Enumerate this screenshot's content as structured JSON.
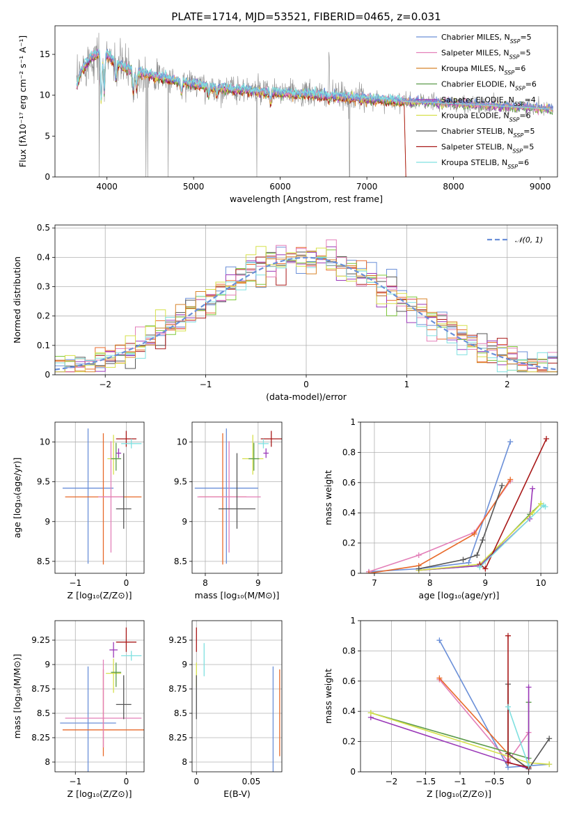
{
  "figure_title": "PLATE=1714, MJD=53521, FIBERID=0465, z=0.031",
  "colors": {
    "c1": "#6a8fd8",
    "c2": "#e37fb8",
    "c3": "#d8842a",
    "c4": "#5b9a4a",
    "c5": "#9a38b8",
    "c6": "#d6e04a",
    "c7": "#555555",
    "c8": "#a81818",
    "c9": "#7fe0e0",
    "c10": "#1f77b4",
    "c11": "#e86a2a",
    "c12": "#7fc83a"
  },
  "chart_data": [
    {
      "id": "spectrum",
      "type": "line",
      "title": "PLATE=1714, MJD=53521, FIBERID=0465, z=0.031",
      "xlabel": "wavelength [Angstrom, rest frame]",
      "ylabel": "Flux [fλ10⁻¹⁷ erg cm⁻² s⁻¹ A⁻¹]",
      "xlim": [
        3400,
        9200
      ],
      "ylim": [
        0,
        18.5
      ],
      "xticks": [
        4000,
        5000,
        6000,
        7000,
        8000,
        9000
      ],
      "yticks": [
        0,
        5,
        10,
        15
      ],
      "grid": false,
      "legend_position": "top-right",
      "legend": [
        {
          "label": "Chabrier MILES, N",
          "sub": "SSP",
          "suffix": "=5",
          "color": "c1"
        },
        {
          "label": "Salpeter MILES, N",
          "sub": "SSP",
          "suffix": "=5",
          "color": "c2"
        },
        {
          "label": "Kroupa MILES, N",
          "sub": "SSP",
          "suffix": "=6",
          "color": "c3"
        },
        {
          "label": "Chabrier ELODIE, N",
          "sub": "SSP",
          "suffix": "=6",
          "color": "c4"
        },
        {
          "label": "Salpeter ELODIE, N",
          "sub": "SSP",
          "suffix": "=4",
          "color": "c5"
        },
        {
          "label": "Kroupa ELODIE, N",
          "sub": "SSP",
          "suffix": "=6",
          "color": "c6"
        },
        {
          "label": "Chabrier STELIB, N",
          "sub": "SSP",
          "suffix": "=5",
          "color": "c7"
        },
        {
          "label": "Salpeter STELIB, N",
          "sub": "SSP",
          "suffix": "=5",
          "color": "c8"
        },
        {
          "label": "Kroupa STELIB, N",
          "sub": "SSP",
          "suffix": "=6",
          "color": "c9"
        }
      ],
      "continuum": [
        [
          3650,
          11
        ],
        [
          3700,
          13
        ],
        [
          3800,
          14.5
        ],
        [
          3950,
          15.5
        ],
        [
          4100,
          14
        ],
        [
          4300,
          13
        ],
        [
          4500,
          12.5
        ],
        [
          4800,
          11.8
        ],
        [
          5200,
          11
        ],
        [
          5500,
          10.7
        ],
        [
          6000,
          10.3
        ],
        [
          6500,
          10
        ],
        [
          7000,
          9.6
        ],
        [
          7500,
          9.2
        ],
        [
          8000,
          9.0
        ],
        [
          8500,
          8.7
        ],
        [
          9000,
          8.4
        ],
        [
          9150,
          8.3
        ]
      ],
      "model_cutoff": 7430
    },
    {
      "id": "residuals",
      "type": "line",
      "xlabel": "(data-model)/error",
      "ylabel": "Normed distribution",
      "xlim": [
        -2.5,
        2.5
      ],
      "ylim": [
        0,
        0.51
      ],
      "xticks": [
        -2,
        -1,
        0,
        1,
        2
      ],
      "yticks": [
        0,
        0.1,
        0.2,
        0.3,
        0.4,
        0.5
      ],
      "grid": true,
      "legend_position": "top-right",
      "legend": [
        {
          "label": "𝒩(0, 1)",
          "color": "c1"
        }
      ],
      "bin_width": 0.1
    },
    {
      "id": "age_vs_Z",
      "type": "scatter",
      "xlabel": "Z [log₁₀(Z/Z⊙)]",
      "ylabel": "age  [log₁₀(age/yr)]",
      "xlim": [
        -1.4,
        0.35
      ],
      "ylim": [
        8.35,
        10.25
      ],
      "xticks": [
        -1,
        0
      ],
      "yticks": [
        8.5,
        9.0,
        9.5,
        10.0
      ],
      "grid": true,
      "points": [
        {
          "x": -0.75,
          "y": 9.42,
          "xerr": 0.5,
          "yerr": [
            0.95,
            0.75
          ],
          "color": "c1"
        },
        {
          "x": -0.45,
          "y": 9.31,
          "xerr": 0.75,
          "yerr": [
            0.85,
            0.8
          ],
          "color": "c11"
        },
        {
          "x": -0.3,
          "y": 9.31,
          "xerr": 0.25,
          "yerr": [
            0.7,
            0.7
          ],
          "color": "c2"
        },
        {
          "x": -0.25,
          "y": 9.79,
          "xerr": 0.12,
          "yerr": [
            0.2,
            0.3
          ],
          "color": "c6"
        },
        {
          "x": -0.2,
          "y": 9.79,
          "xerr": 0.1,
          "yerr": [
            0.15,
            0.2
          ],
          "color": "c4"
        },
        {
          "x": -0.15,
          "y": 9.86,
          "xerr": 0.05,
          "yerr": [
            0.06,
            0.06
          ],
          "color": "c5"
        },
        {
          "x": -0.05,
          "y": 9.16,
          "xerr": 0.15,
          "yerr": [
            0.25,
            0.7
          ],
          "color": "c7"
        },
        {
          "x": 0.0,
          "y": 10.04,
          "xerr": 0.2,
          "yerr": [
            0.1,
            0.1
          ],
          "color": "c8"
        },
        {
          "x": 0.1,
          "y": 9.98,
          "xerr": 0.2,
          "yerr": [
            0.06,
            0.06
          ],
          "color": "c9"
        }
      ]
    },
    {
      "id": "age_vs_mass",
      "type": "scatter",
      "xlabel": "mass [log₁₀(M/M⊙)]",
      "ylabel": "",
      "xlim": [
        7.75,
        9.45
      ],
      "ylim": [
        8.35,
        10.25
      ],
      "xticks": [
        8,
        9
      ],
      "yticks": [
        8.5,
        9.0,
        9.5,
        10.0
      ],
      "grid": true,
      "points": [
        {
          "x": 8.4,
          "y": 9.42,
          "xerr": 0.6,
          "yerr": [
            0.95,
            0.75
          ],
          "color": "c1"
        },
        {
          "x": 8.33,
          "y": 9.31,
          "xerr": 0.45,
          "yerr": [
            0.85,
            0.8
          ],
          "color": "c11"
        },
        {
          "x": 8.45,
          "y": 9.31,
          "xerr": 0.6,
          "yerr": [
            0.7,
            0.7
          ],
          "color": "c2"
        },
        {
          "x": 8.9,
          "y": 9.79,
          "xerr": 0.2,
          "yerr": [
            0.2,
            0.3
          ],
          "color": "c6"
        },
        {
          "x": 8.92,
          "y": 9.79,
          "xerr": 0.1,
          "yerr": [
            0.15,
            0.2
          ],
          "color": "c4"
        },
        {
          "x": 9.15,
          "y": 9.86,
          "xerr": 0.05,
          "yerr": [
            0.06,
            0.06
          ],
          "color": "c5"
        },
        {
          "x": 8.6,
          "y": 9.16,
          "xerr": 0.35,
          "yerr": [
            0.25,
            0.7
          ],
          "color": "c7"
        },
        {
          "x": 9.25,
          "y": 10.04,
          "xerr": 0.2,
          "yerr": [
            0.1,
            0.1
          ],
          "color": "c8"
        },
        {
          "x": 9.1,
          "y": 9.98,
          "xerr": 0.1,
          "yerr": [
            0.06,
            0.06
          ],
          "color": "c9"
        }
      ]
    },
    {
      "id": "massweight_vs_age",
      "type": "line",
      "xlabel": "age  [log₁₀(age/yr)]",
      "ylabel": "mass weight",
      "xlim": [
        6.75,
        10.3
      ],
      "ylim": [
        0,
        1.0
      ],
      "xticks": [
        7,
        8,
        9,
        10
      ],
      "yticks": [
        0,
        0.2,
        0.4,
        0.6,
        0.8,
        1.0
      ],
      "grid": true,
      "series": [
        {
          "color": "c1",
          "x": [
            6.9,
            7.8,
            8.7,
            9.45
          ],
          "y": [
            0.01,
            0.03,
            0.07,
            0.87
          ]
        },
        {
          "color": "c2",
          "x": [
            6.9,
            7.8,
            8.8,
            9.45
          ],
          "y": [
            0.01,
            0.12,
            0.27,
            0.61
          ]
        },
        {
          "color": "c11",
          "x": [
            6.9,
            7.8,
            8.8,
            9.45
          ],
          "y": [
            0.0,
            0.05,
            0.26,
            0.62
          ]
        },
        {
          "color": "c4",
          "x": [
            7.8,
            8.9,
            9.8,
            10.0
          ],
          "y": [
            0.02,
            0.05,
            0.39,
            0.46
          ]
        },
        {
          "color": "c5",
          "x": [
            7.8,
            8.9,
            9.8,
            9.85
          ],
          "y": [
            0.02,
            0.05,
            0.36,
            0.56
          ]
        },
        {
          "color": "c6",
          "x": [
            7.8,
            8.9,
            9.85,
            10.0
          ],
          "y": [
            0.02,
            0.06,
            0.4,
            0.46
          ]
        },
        {
          "color": "c7",
          "x": [
            7.8,
            8.6,
            8.85,
            8.95,
            9.3
          ],
          "y": [
            0.03,
            0.09,
            0.12,
            0.22,
            0.58
          ]
        },
        {
          "color": "c8",
          "x": [
            8.9,
            9.0,
            10.1
          ],
          "y": [
            0.06,
            0.03,
            0.89
          ]
        },
        {
          "color": "c9",
          "x": [
            8.9,
            10.05,
            10.08
          ],
          "y": [
            0.04,
            0.45,
            0.44
          ]
        }
      ]
    },
    {
      "id": "mass_vs_Z",
      "type": "scatter",
      "xlabel": "Z [log₁₀(Z/Z⊙)]",
      "ylabel": "mass [log₁₀(M/M⊙)]",
      "xlim": [
        -1.4,
        0.35
      ],
      "ylim": [
        7.9,
        9.45
      ],
      "xticks": [
        -1,
        0
      ],
      "yticks": [
        8.0,
        8.25,
        8.5,
        8.75,
        9.0,
        9.25
      ],
      "grid": true,
      "points": [
        {
          "x": -0.75,
          "y": 8.4,
          "xerr": 0.55,
          "yerr": [
            0.55,
            0.58
          ],
          "color": "c1"
        },
        {
          "x": -0.45,
          "y": 8.33,
          "xerr": 0.8,
          "yerr": [
            0.27,
            0.62
          ],
          "color": "c11"
        },
        {
          "x": -0.45,
          "y": 8.45,
          "xerr": 0.75,
          "yerr": [
            0.3,
            0.6
          ],
          "color": "c2"
        },
        {
          "x": -0.25,
          "y": 8.91,
          "xerr": 0.15,
          "yerr": [
            0.2,
            0.15
          ],
          "color": "c6"
        },
        {
          "x": -0.2,
          "y": 8.92,
          "xerr": 0.1,
          "yerr": [
            0.15,
            0.1
          ],
          "color": "c4"
        },
        {
          "x": -0.25,
          "y": 9.15,
          "xerr": 0.08,
          "yerr": [
            0.08,
            0.08
          ],
          "color": "c5"
        },
        {
          "x": -0.05,
          "y": 8.59,
          "xerr": 0.15,
          "yerr": [
            0.15,
            0.3
          ],
          "color": "c7"
        },
        {
          "x": 0.0,
          "y": 9.23,
          "xerr": 0.2,
          "yerr": [
            0.1,
            0.15
          ],
          "color": "c8"
        },
        {
          "x": 0.1,
          "y": 9.09,
          "xerr": 0.2,
          "yerr": [
            0.05,
            0.05
          ],
          "color": "c9"
        }
      ]
    },
    {
      "id": "mass_vs_ebv",
      "type": "scatter",
      "xlabel": "E(B-V)",
      "ylabel": "",
      "xlim": [
        -0.004,
        0.078
      ],
      "ylim": [
        7.9,
        9.45
      ],
      "xticks": [
        0.0,
        0.05
      ],
      "yticks": [
        8.0,
        8.25,
        8.5,
        8.75,
        9.0,
        9.25
      ],
      "grid": true,
      "points": [
        {
          "x": 0.07,
          "y": 8.4,
          "yerr": [
            0.55,
            0.58
          ],
          "color": "c1"
        },
        {
          "x": 0.076,
          "y": 8.33,
          "yerr": [
            0.27,
            0.62
          ],
          "color": "c11"
        },
        {
          "x": 0.0,
          "y": 8.92,
          "yerr": [
            0.15,
            0.1
          ],
          "color": "c6"
        },
        {
          "x": 0.0,
          "y": 8.59,
          "yerr": [
            0.15,
            0.3
          ],
          "color": "c7"
        },
        {
          "x": 0.0,
          "y": 9.23,
          "yerr": [
            0.1,
            0.15
          ],
          "color": "c8"
        },
        {
          "x": 0.007,
          "y": 9.05,
          "yerr": [
            0.17,
            0.17
          ],
          "color": "c9"
        }
      ]
    },
    {
      "id": "massweight_vs_Z",
      "type": "line",
      "xlabel": "Z [log₁₀(Z/Z⊙)]",
      "ylabel": "mass weight",
      "xlim": [
        -2.45,
        0.42
      ],
      "ylim": [
        0,
        1.0
      ],
      "xticks": [
        -2.0,
        -1.5,
        -1.0,
        -0.5,
        0.0
      ],
      "yticks": [
        0,
        0.2,
        0.4,
        0.6,
        0.8,
        1.0
      ],
      "grid": true,
      "series": [
        {
          "color": "c1",
          "x": [
            -1.3,
            -0.3,
            0.3
          ],
          "y": [
            0.87,
            0.03,
            0.05
          ]
        },
        {
          "color": "c2",
          "x": [
            -1.3,
            -0.3,
            0.0
          ],
          "y": [
            0.61,
            0.07,
            0.26
          ]
        },
        {
          "color": "c11",
          "x": [
            -1.3,
            -0.3,
            0.0
          ],
          "y": [
            0.62,
            0.12,
            0.02
          ]
        },
        {
          "color": "c4",
          "x": [
            -2.3,
            0.0,
            0.0
          ],
          "y": [
            0.39,
            0.09,
            0.46
          ]
        },
        {
          "color": "c5",
          "x": [
            -2.3,
            0.0,
            0.0
          ],
          "y": [
            0.36,
            0.02,
            0.56
          ]
        },
        {
          "color": "c6",
          "x": [
            -2.3,
            0.0,
            0.3
          ],
          "y": [
            0.39,
            0.06,
            0.05
          ]
        },
        {
          "color": "c7",
          "x": [
            -0.3,
            -0.3,
            0.0,
            0.3
          ],
          "y": [
            0.58,
            0.12,
            0.02,
            0.22
          ]
        },
        {
          "color": "c8",
          "x": [
            -0.3,
            -0.3,
            0.0
          ],
          "y": [
            0.9,
            0.06,
            0.03
          ]
        },
        {
          "color": "c9",
          "x": [
            -0.3,
            0.0
          ],
          "y": [
            0.43,
            0.04
          ]
        }
      ]
    }
  ]
}
